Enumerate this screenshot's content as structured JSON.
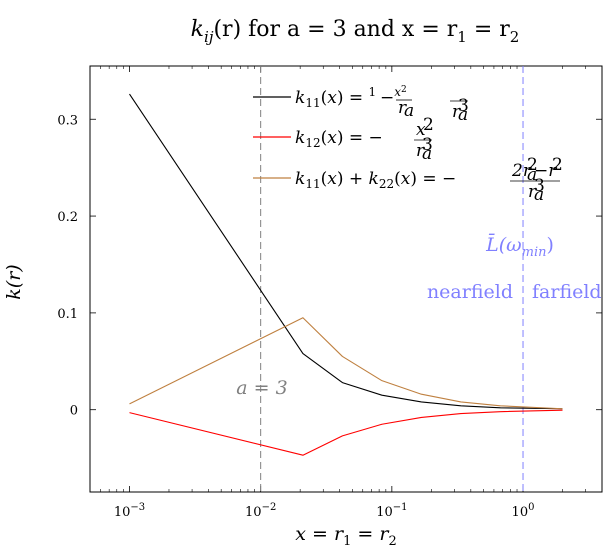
{
  "chart_data": {
    "type": "line",
    "title_parts": {
      "lead": "k",
      "sub": "ij",
      "mid": "(r) for a = 3 and x = r",
      "sub1": "1",
      "eq": " = r",
      "sub2": "2"
    },
    "xlabel": "x = r1 = r2",
    "xlabel_parts": {
      "lead": "x = r",
      "sub1": "1",
      "eq": " = r",
      "sub2": "2"
    },
    "ylabel": "k(r)",
    "x_scale": "log",
    "xlim": [
      0.0005,
      4
    ],
    "ylim": [
      -0.085,
      0.355
    ],
    "xticks": [
      {
        "value": 0.001,
        "label_base": "10",
        "label_exp": "−3"
      },
      {
        "value": 0.01,
        "label_base": "10",
        "label_exp": "−2"
      },
      {
        "value": 0.1,
        "label_base": "10",
        "label_exp": "−1"
      },
      {
        "value": 1,
        "label_base": "10",
        "label_exp": "0"
      }
    ],
    "yticks": [
      {
        "value": 0,
        "label": "0"
      },
      {
        "value": 0.1,
        "label": "0.1"
      },
      {
        "value": 0.2,
        "label": "0.2"
      },
      {
        "value": 0.3,
        "label": "0.3"
      }
    ],
    "grid": false,
    "legend_position": "top-right",
    "series": [
      {
        "key": "k11",
        "name": "k11(x) = 1/ra − x²/ra³",
        "color": "#000000",
        "x": [
          0.001,
          0.021,
          0.042,
          0.084,
          0.168,
          0.336,
          0.672,
          2.0
        ],
        "y": [
          0.326,
          0.058,
          0.028,
          0.015,
          0.008,
          0.004,
          0.002,
          0.001
        ]
      },
      {
        "key": "k12",
        "name": "k12(x) = −x²/ra³",
        "color": "#ff0000",
        "x": [
          0.001,
          0.021,
          0.042,
          0.084,
          0.168,
          0.336,
          0.672,
          2.0
        ],
        "y": [
          -0.003,
          -0.047,
          -0.027,
          -0.015,
          -0.008,
          -0.004,
          -0.002,
          -0.0005
        ]
      },
      {
        "key": "ksum",
        "name": "k11(x) + k22(x) = −(2ra² − r²)/ra³",
        "color": "#bf8040",
        "x": [
          0.001,
          0.021,
          0.042,
          0.084,
          0.168,
          0.336,
          0.672,
          2.0
        ],
        "y": [
          0.006,
          0.095,
          0.055,
          0.03,
          0.016,
          0.008,
          0.004,
          0.001
        ]
      }
    ],
    "vlines": [
      {
        "key": "a",
        "x": 0.01,
        "color": "#808080",
        "label": "a = 3",
        "label_color": "#808080"
      },
      {
        "key": "L",
        "x": 1.0,
        "color": "#8080ff",
        "label": "L̄(ωmin)",
        "label_color": "#8080ff"
      }
    ],
    "annotations": {
      "a_label": "a = 3",
      "L_label_base": "L̄(ω",
      "L_label_sub": "min",
      "L_label_close": ")",
      "nearfield": "nearfield",
      "farfield": "farfield",
      "annot_color": "#8080ff"
    }
  }
}
